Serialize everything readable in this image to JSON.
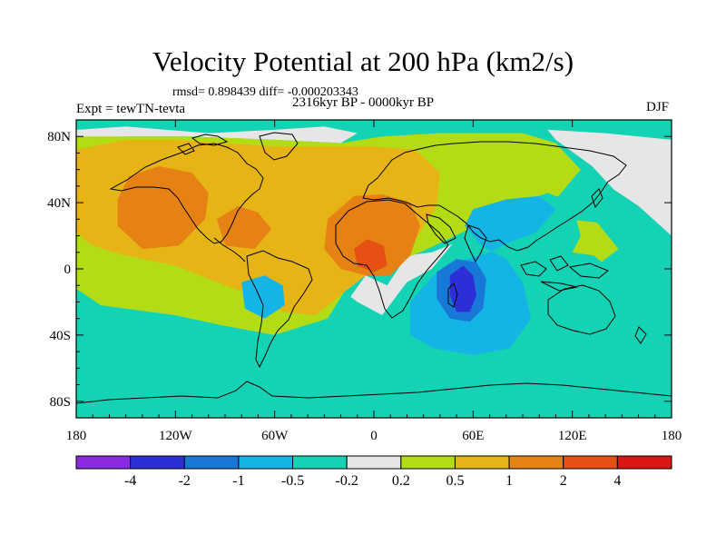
{
  "chart_data": {
    "type": "heatmap",
    "title": "Velocity Potential at 200 hPa (km2/s)",
    "stats_label": "rmsd= 0.898439 diff= -0.000203343",
    "left_label": "Expt = tewTN-tevta",
    "center_label": "2316kyr BP - 0000kyr BP",
    "right_label": "DJF",
    "x_axis": {
      "lim": [
        -180,
        180
      ],
      "ticks": [
        -180,
        -120,
        -60,
        0,
        60,
        120,
        180
      ],
      "tick_labels": [
        "180",
        "120W",
        "60W",
        "0",
        "60E",
        "120E",
        "180"
      ]
    },
    "y_axis": {
      "lim": [
        -90,
        90
      ],
      "ticks": [
        80,
        40,
        0,
        -40,
        -80
      ],
      "tick_labels": [
        "80N",
        "40N",
        "0",
        "40S",
        "80S"
      ]
    },
    "colorbar": {
      "colors": [
        "#8a2be2",
        "#2e2ed8",
        "#1878d8",
        "#14b4e6",
        "#14d2b4",
        "#e6e6e6",
        "#b4dc14",
        "#e6b414",
        "#e68214",
        "#e65014",
        "#dc1414"
      ],
      "boundaries": [
        "-4",
        "-2",
        "-1",
        "-0.5",
        "-0.2",
        "0.2",
        "0.5",
        "1",
        "2",
        "4"
      ]
    },
    "regions": [
      {
        "level": 5,
        "points": [
          [
            -180,
            10
          ],
          [
            -150,
            12
          ],
          [
            -120,
            4
          ],
          [
            -100,
            -4
          ],
          [
            -85,
            -12
          ],
          [
            -82,
            -26
          ],
          [
            -55,
            -42
          ],
          [
            -35,
            -40
          ],
          [
            -15,
            -18
          ],
          [
            -5,
            -4
          ],
          [
            8,
            -10
          ],
          [
            20,
            8
          ],
          [
            35,
            10
          ],
          [
            60,
            20
          ],
          [
            80,
            12
          ],
          [
            60,
            -18
          ],
          [
            28,
            -60
          ],
          [
            20,
            -55
          ],
          [
            10,
            -30
          ],
          [
            -15,
            -35
          ],
          [
            -60,
            -48
          ],
          [
            -90,
            -40
          ],
          [
            -135,
            -32
          ],
          [
            -170,
            -18
          ],
          [
            -180,
            -5
          ]
        ]
      },
      {
        "level": 5,
        "points": [
          [
            105,
            84
          ],
          [
            140,
            82
          ],
          [
            180,
            78
          ],
          [
            180,
            20
          ],
          [
            160,
            38
          ],
          [
            145,
            48
          ],
          [
            132,
            62
          ],
          [
            110,
            78
          ]
        ]
      },
      {
        "level": 5,
        "points": [
          [
            -180,
            84
          ],
          [
            -150,
            86
          ],
          [
            -100,
            82
          ],
          [
            -60,
            84
          ],
          [
            -30,
            86
          ],
          [
            -10,
            82
          ],
          [
            -20,
            76
          ],
          [
            -60,
            78
          ],
          [
            -110,
            80
          ],
          [
            -150,
            80
          ],
          [
            -180,
            79
          ]
        ]
      },
      {
        "level": 6,
        "points": [
          [
            -180,
            80
          ],
          [
            -150,
            80
          ],
          [
            -110,
            80
          ],
          [
            -60,
            78
          ],
          [
            -20,
            76
          ],
          [
            5,
            80
          ],
          [
            40,
            82
          ],
          [
            90,
            82
          ],
          [
            110,
            76
          ],
          [
            125,
            60
          ],
          [
            110,
            42
          ],
          [
            70,
            30
          ],
          [
            45,
            18
          ],
          [
            28,
            10
          ],
          [
            18,
            6
          ],
          [
            10,
            -2
          ],
          [
            -5,
            -4
          ],
          [
            -18,
            -14
          ],
          [
            -28,
            -30
          ],
          [
            -60,
            -40
          ],
          [
            -92,
            -34
          ],
          [
            -120,
            -28
          ],
          [
            -165,
            -22
          ],
          [
            -180,
            -12
          ]
        ]
      },
      {
        "level": 6,
        "points": [
          [
            100,
            16
          ],
          [
            118,
            30
          ],
          [
            135,
            28
          ],
          [
            148,
            12
          ],
          [
            132,
            0
          ],
          [
            112,
            4
          ]
        ]
      },
      {
        "level": 7,
        "points": [
          [
            -180,
            72
          ],
          [
            -150,
            78
          ],
          [
            -120,
            78
          ],
          [
            -90,
            76
          ],
          [
            -60,
            74
          ],
          [
            -30,
            74
          ],
          [
            0,
            74
          ],
          [
            25,
            72
          ],
          [
            40,
            58
          ],
          [
            38,
            38
          ],
          [
            28,
            22
          ],
          [
            18,
            8
          ],
          [
            8,
            0
          ],
          [
            -5,
            -4
          ],
          [
            -18,
            -14
          ],
          [
            -35,
            -28
          ],
          [
            -55,
            -26
          ],
          [
            -72,
            -16
          ],
          [
            -90,
            -10
          ],
          [
            -120,
            2
          ],
          [
            -150,
            8
          ],
          [
            -170,
            14
          ],
          [
            -180,
            22
          ]
        ]
      },
      {
        "level": 8,
        "points": [
          [
            -155,
            42
          ],
          [
            -148,
            56
          ],
          [
            -130,
            62
          ],
          [
            -110,
            58
          ],
          [
            -100,
            46
          ],
          [
            -102,
            30
          ],
          [
            -118,
            14
          ],
          [
            -140,
            12
          ],
          [
            -155,
            26
          ]
        ]
      },
      {
        "level": 8,
        "points": [
          [
            -95,
            30
          ],
          [
            -82,
            38
          ],
          [
            -70,
            34
          ],
          [
            -62,
            24
          ],
          [
            -72,
            12
          ],
          [
            -90,
            14
          ]
        ]
      },
      {
        "level": 8,
        "points": [
          [
            -28,
            30
          ],
          [
            -12,
            44
          ],
          [
            5,
            45
          ],
          [
            22,
            40
          ],
          [
            28,
            26
          ],
          [
            22,
            8
          ],
          [
            10,
            -4
          ],
          [
            -5,
            -4
          ],
          [
            -20,
            0
          ],
          [
            -30,
            12
          ]
        ]
      },
      {
        "level": 9,
        "points": [
          [
            -12,
            12
          ],
          [
            -4,
            18
          ],
          [
            6,
            14
          ],
          [
            8,
            2
          ],
          [
            0,
            -2
          ],
          [
            -10,
            2
          ]
        ]
      },
      {
        "level": 4,
        "points": [
          [
            120,
            10
          ],
          [
            133,
            8
          ],
          [
            145,
            -2
          ],
          [
            165,
            -8
          ],
          [
            180,
            -8
          ],
          [
            180,
            -90
          ],
          [
            -180,
            -90
          ],
          [
            -180,
            -22
          ],
          [
            -165,
            -22
          ],
          [
            -120,
            -28
          ],
          [
            -92,
            -34
          ],
          [
            -60,
            -40
          ],
          [
            -28,
            -30
          ],
          [
            -18,
            -14
          ],
          [
            -10,
            -20
          ],
          [
            5,
            -28
          ],
          [
            20,
            -8
          ],
          [
            35,
            0
          ],
          [
            50,
            18
          ],
          [
            68,
            28
          ],
          [
            85,
            38
          ],
          [
            105,
            46
          ],
          [
            120,
            40
          ],
          [
            125,
            20
          ]
        ]
      },
      {
        "level": 3,
        "points": [
          [
            60,
            36
          ],
          [
            80,
            42
          ],
          [
            100,
            44
          ],
          [
            110,
            36
          ],
          [
            98,
            22
          ],
          [
            82,
            16
          ],
          [
            70,
            10
          ],
          [
            50,
            4
          ],
          [
            36,
            -4
          ],
          [
            22,
            -20
          ],
          [
            22,
            -40
          ],
          [
            36,
            -48
          ],
          [
            60,
            -52
          ],
          [
            82,
            -48
          ],
          [
            95,
            -30
          ],
          [
            90,
            -8
          ],
          [
            80,
            6
          ],
          [
            65,
            14
          ],
          [
            55,
            26
          ]
        ]
      },
      {
        "level": 3,
        "points": [
          [
            -80,
            -8
          ],
          [
            -66,
            -4
          ],
          [
            -55,
            -10
          ],
          [
            -54,
            -22
          ],
          [
            -66,
            -30
          ],
          [
            -78,
            -24
          ]
        ]
      },
      {
        "level": 2,
        "points": [
          [
            38,
            -2
          ],
          [
            50,
            6
          ],
          [
            62,
            4
          ],
          [
            68,
            -6
          ],
          [
            66,
            -24
          ],
          [
            58,
            -32
          ],
          [
            46,
            -30
          ],
          [
            38,
            -18
          ]
        ]
      },
      {
        "level": 1,
        "points": [
          [
            46,
            -4
          ],
          [
            54,
            2
          ],
          [
            60,
            -4
          ],
          [
            62,
            -16
          ],
          [
            58,
            -26
          ],
          [
            50,
            -26
          ],
          [
            46,
            -16
          ]
        ]
      }
    ],
    "zero_lat_grid": false
  }
}
